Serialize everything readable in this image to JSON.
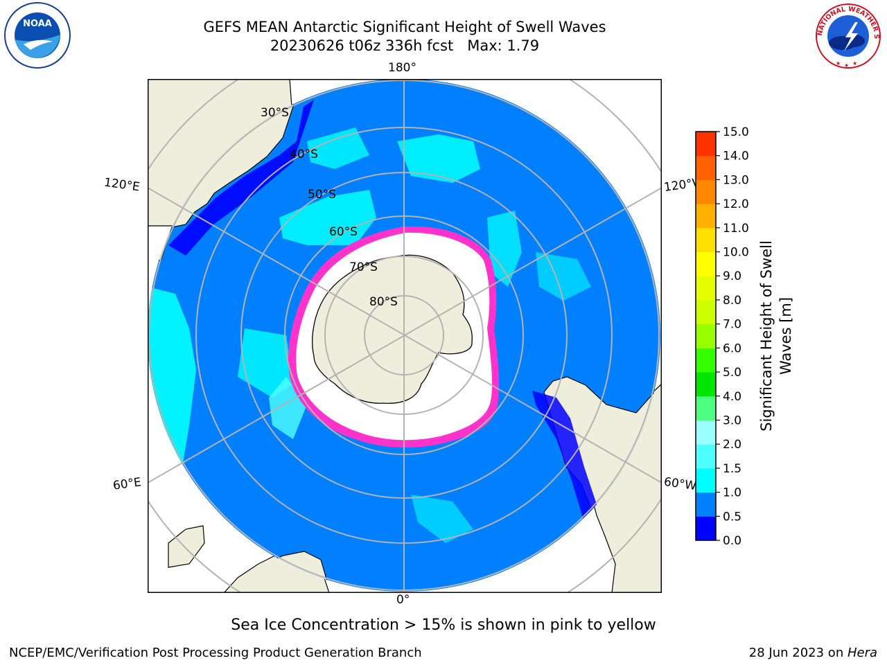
{
  "header": {
    "title_line1": "GEFS MEAN Antarctic Significant Height of Swell Waves",
    "title_line2": "20230626 t06z 336h fcst   Max: 1.79",
    "noaa_logo_text": "NOAA",
    "nws_logo_text": "NATIONAL WEATHER SERVICE"
  },
  "map": {
    "lon_labels": {
      "top": "180°",
      "bottom": "0°",
      "upper_left": "120°E",
      "lower_left": "60°E",
      "upper_right": "120°W",
      "lower_right": "60°W"
    },
    "lat_labels": [
      "30°S",
      "40°S",
      "50°S",
      "60°S",
      "70°S",
      "80°S"
    ],
    "colors": {
      "ocean": "#0080ff",
      "ocean_low": "#0000ff",
      "swell_1_0_1_5": "#00ffff",
      "swell_1_5_2_0": "#4dffff",
      "sea_ice": "#ffffff",
      "ice_edge": "#ff33cc",
      "land": "#eeeedd",
      "grid": "#b3b3b3"
    }
  },
  "colorbar": {
    "label_line1": "Significant Height of Swell",
    "label_line2": "Waves [m]",
    "ticks": [
      "0.0",
      "0.5",
      "1.0",
      "1.5",
      "2.0",
      "3.0",
      "4.0",
      "5.0",
      "6.0",
      "7.0",
      "8.0",
      "9.0",
      "10.0",
      "11.0",
      "12.0",
      "13.0",
      "14.0",
      "15.0"
    ],
    "colors": [
      "#0000ff",
      "#0080ff",
      "#00ffff",
      "#4dffff",
      "#99ffff",
      "#4dff80",
      "#00e600",
      "#33ff00",
      "#99ff00",
      "#ccff00",
      "#e6ff00",
      "#ffff00",
      "#ffe000",
      "#ffb000",
      "#ff8800",
      "#ff6000",
      "#ff3300",
      "#ff0000"
    ]
  },
  "note": "Sea Ice Concentration > 15% is shown in pink to yellow",
  "footer": {
    "left": "NCEP/EMC/Verification Post Processing Product Generation Branch",
    "right_date": "28 Jun 2023 on ",
    "right_host": "Hera"
  }
}
